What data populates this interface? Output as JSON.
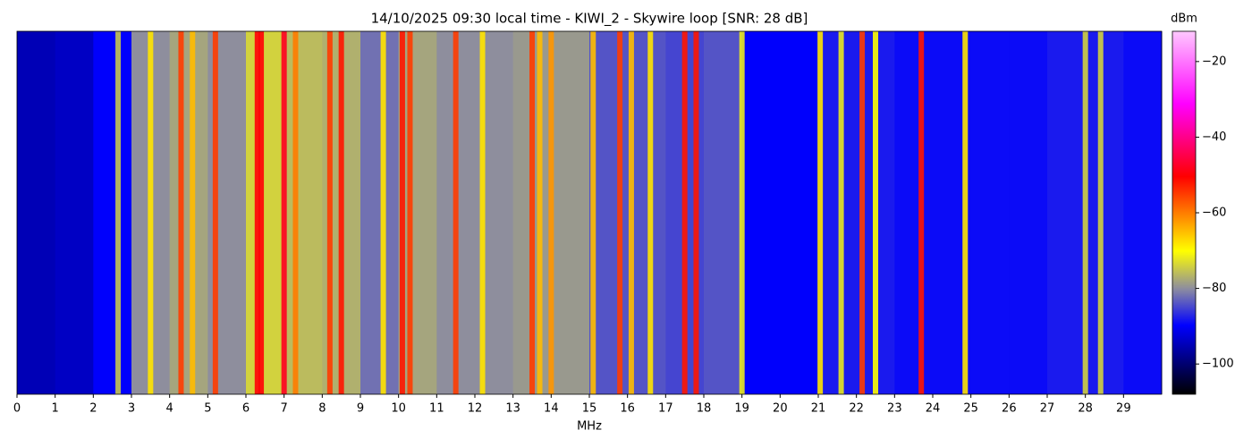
{
  "chart_data": {
    "type": "spectrogram",
    "title": "14/10/2025 09:30 local time - KIWI_2 - Skywire loop [SNR: 28 dB]",
    "xlabel": "MHz",
    "colorbar_label": "dBm",
    "xlim": [
      0,
      30
    ],
    "xticks": [
      0,
      1,
      2,
      3,
      4,
      5,
      6,
      7,
      8,
      9,
      10,
      11,
      12,
      13,
      14,
      15,
      16,
      17,
      18,
      19,
      20,
      21,
      22,
      23,
      24,
      25,
      26,
      27,
      28,
      29
    ],
    "clim": [
      -108,
      -12
    ],
    "cticks": [
      {
        "value": -20,
        "label": "−20"
      },
      {
        "value": -40,
        "label": "−40"
      },
      {
        "value": -60,
        "label": "−60"
      },
      {
        "value": -80,
        "label": "−80"
      },
      {
        "value": -100,
        "label": "−100"
      }
    ],
    "x": [
      0.5,
      1.5,
      2.5,
      3.5,
      4.5,
      5.5,
      6.5,
      7.5,
      8.5,
      9.5,
      10.5,
      11.5,
      12.5,
      13.5,
      14.5,
      15.5,
      16.5,
      17.5,
      18.5,
      19.5,
      20.5,
      21.5,
      22.5,
      23.5,
      24.5,
      25.5,
      26.5,
      27.5,
      28.5,
      29.5
    ],
    "values": [
      -95,
      -94,
      -90,
      -80,
      -78,
      -80,
      -74,
      -76,
      -77,
      -82,
      -78,
      -80,
      -80,
      -79,
      -79,
      -84,
      -84,
      -85,
      -84,
      -90,
      -90,
      -88,
      -88,
      -89,
      -89,
      -89,
      -89,
      -88,
      -88,
      -89
    ],
    "signals": {
      "x": [
        2.65,
        3.5,
        4.3,
        4.6,
        5.2,
        6.3,
        6.4,
        7.0,
        7.3,
        8.2,
        8.5,
        9.6,
        10.1,
        10.3,
        11.5,
        12.2,
        13.5,
        13.7,
        14.0,
        15.1,
        15.8,
        16.1,
        16.6,
        17.5,
        17.8,
        19.0,
        21.05,
        21.6,
        22.15,
        22.5,
        23.7,
        24.85,
        28.0,
        28.4
      ],
      "values": [
        -75,
        -68,
        -55,
        -65,
        -55,
        -50,
        -50,
        -48,
        -60,
        -55,
        -52,
        -68,
        -52,
        -55,
        -55,
        -68,
        -55,
        -65,
        -62,
        -65,
        -55,
        -65,
        -68,
        -52,
        -52,
        -72,
        -68,
        -72,
        -55,
        -70,
        -52,
        -68,
        -74,
        -74
      ]
    }
  }
}
